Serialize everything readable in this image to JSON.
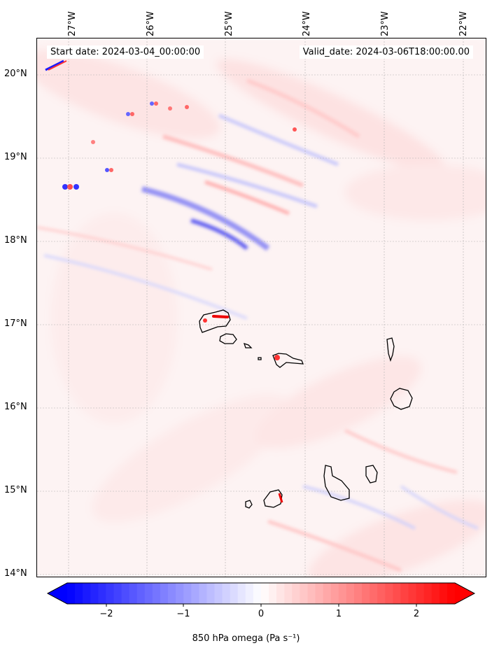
{
  "header": {
    "start_date": "Start date: 2024-03-04_00:00:00",
    "valid_date": "Valid_date: 2024-03-06T18:00:00.00"
  },
  "map": {
    "lon_ticks": [
      "27°W",
      "26°W",
      "25°W",
      "24°W",
      "23°W",
      "22°W"
    ],
    "lat_ticks": [
      "20°N",
      "19°N",
      "18°N",
      "17°N",
      "16°N",
      "15°N",
      "14°N"
    ],
    "gridlines": true,
    "colormap": {
      "negative": "#0000ff",
      "zero": "#ffffff",
      "positive": "#ff0000"
    },
    "coastline_color": "#000000"
  },
  "colorbar": {
    "ticks": [
      "−2",
      "−1",
      "0",
      "1",
      "2"
    ],
    "range": [
      -2.7,
      2.7
    ],
    "label": "850 hPa omega (Pa s⁻¹)",
    "extend": "both"
  }
}
